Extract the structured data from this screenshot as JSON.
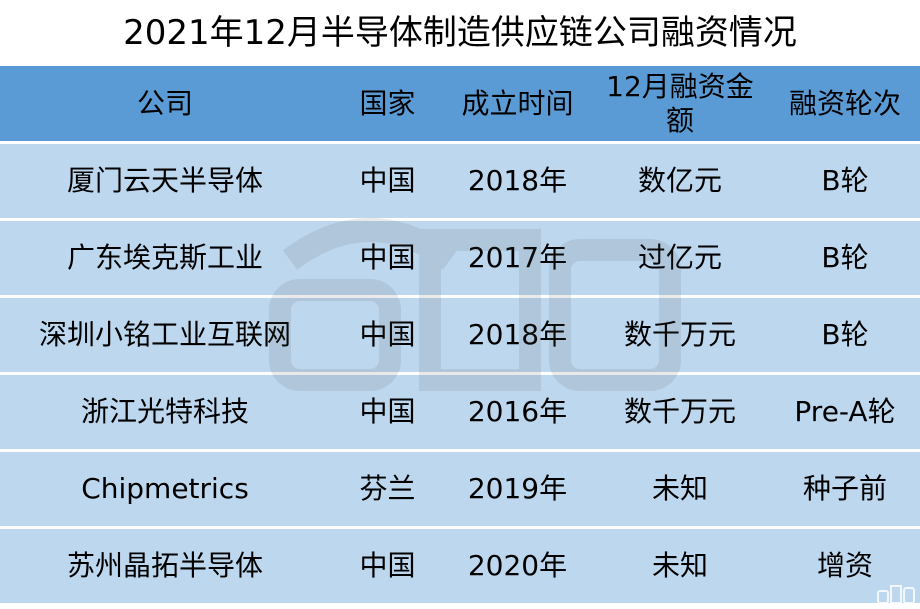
{
  "title": "2021年12月半导体制造供应链公司融资情况",
  "columns": [
    "公司",
    "国家",
    "成立时间",
    "12月融资金额",
    "融资轮次"
  ],
  "rows": [
    [
      "厦门云天半导体",
      "中国",
      "2018年",
      "数亿元",
      "B轮"
    ],
    [
      "广东埃克斯工业",
      "中国",
      "2017年",
      "过亿元",
      "B轮"
    ],
    [
      "深圳小铭工业互联网",
      "中国",
      "2018年",
      "数千万元",
      "B轮"
    ],
    [
      "浙江光特科技",
      "中国",
      "2016年",
      "数千万元",
      "Pre-A轮"
    ],
    [
      "Chipmetrics",
      "芬兰",
      "2019年",
      "未知",
      "种子前"
    ],
    [
      "苏州晶拓半导体",
      "中国",
      "2020年",
      "未知",
      "增资"
    ]
  ],
  "watermark": "智东西",
  "colors": {
    "header": "#5b9bd5",
    "row": "#bdd7ee"
  }
}
